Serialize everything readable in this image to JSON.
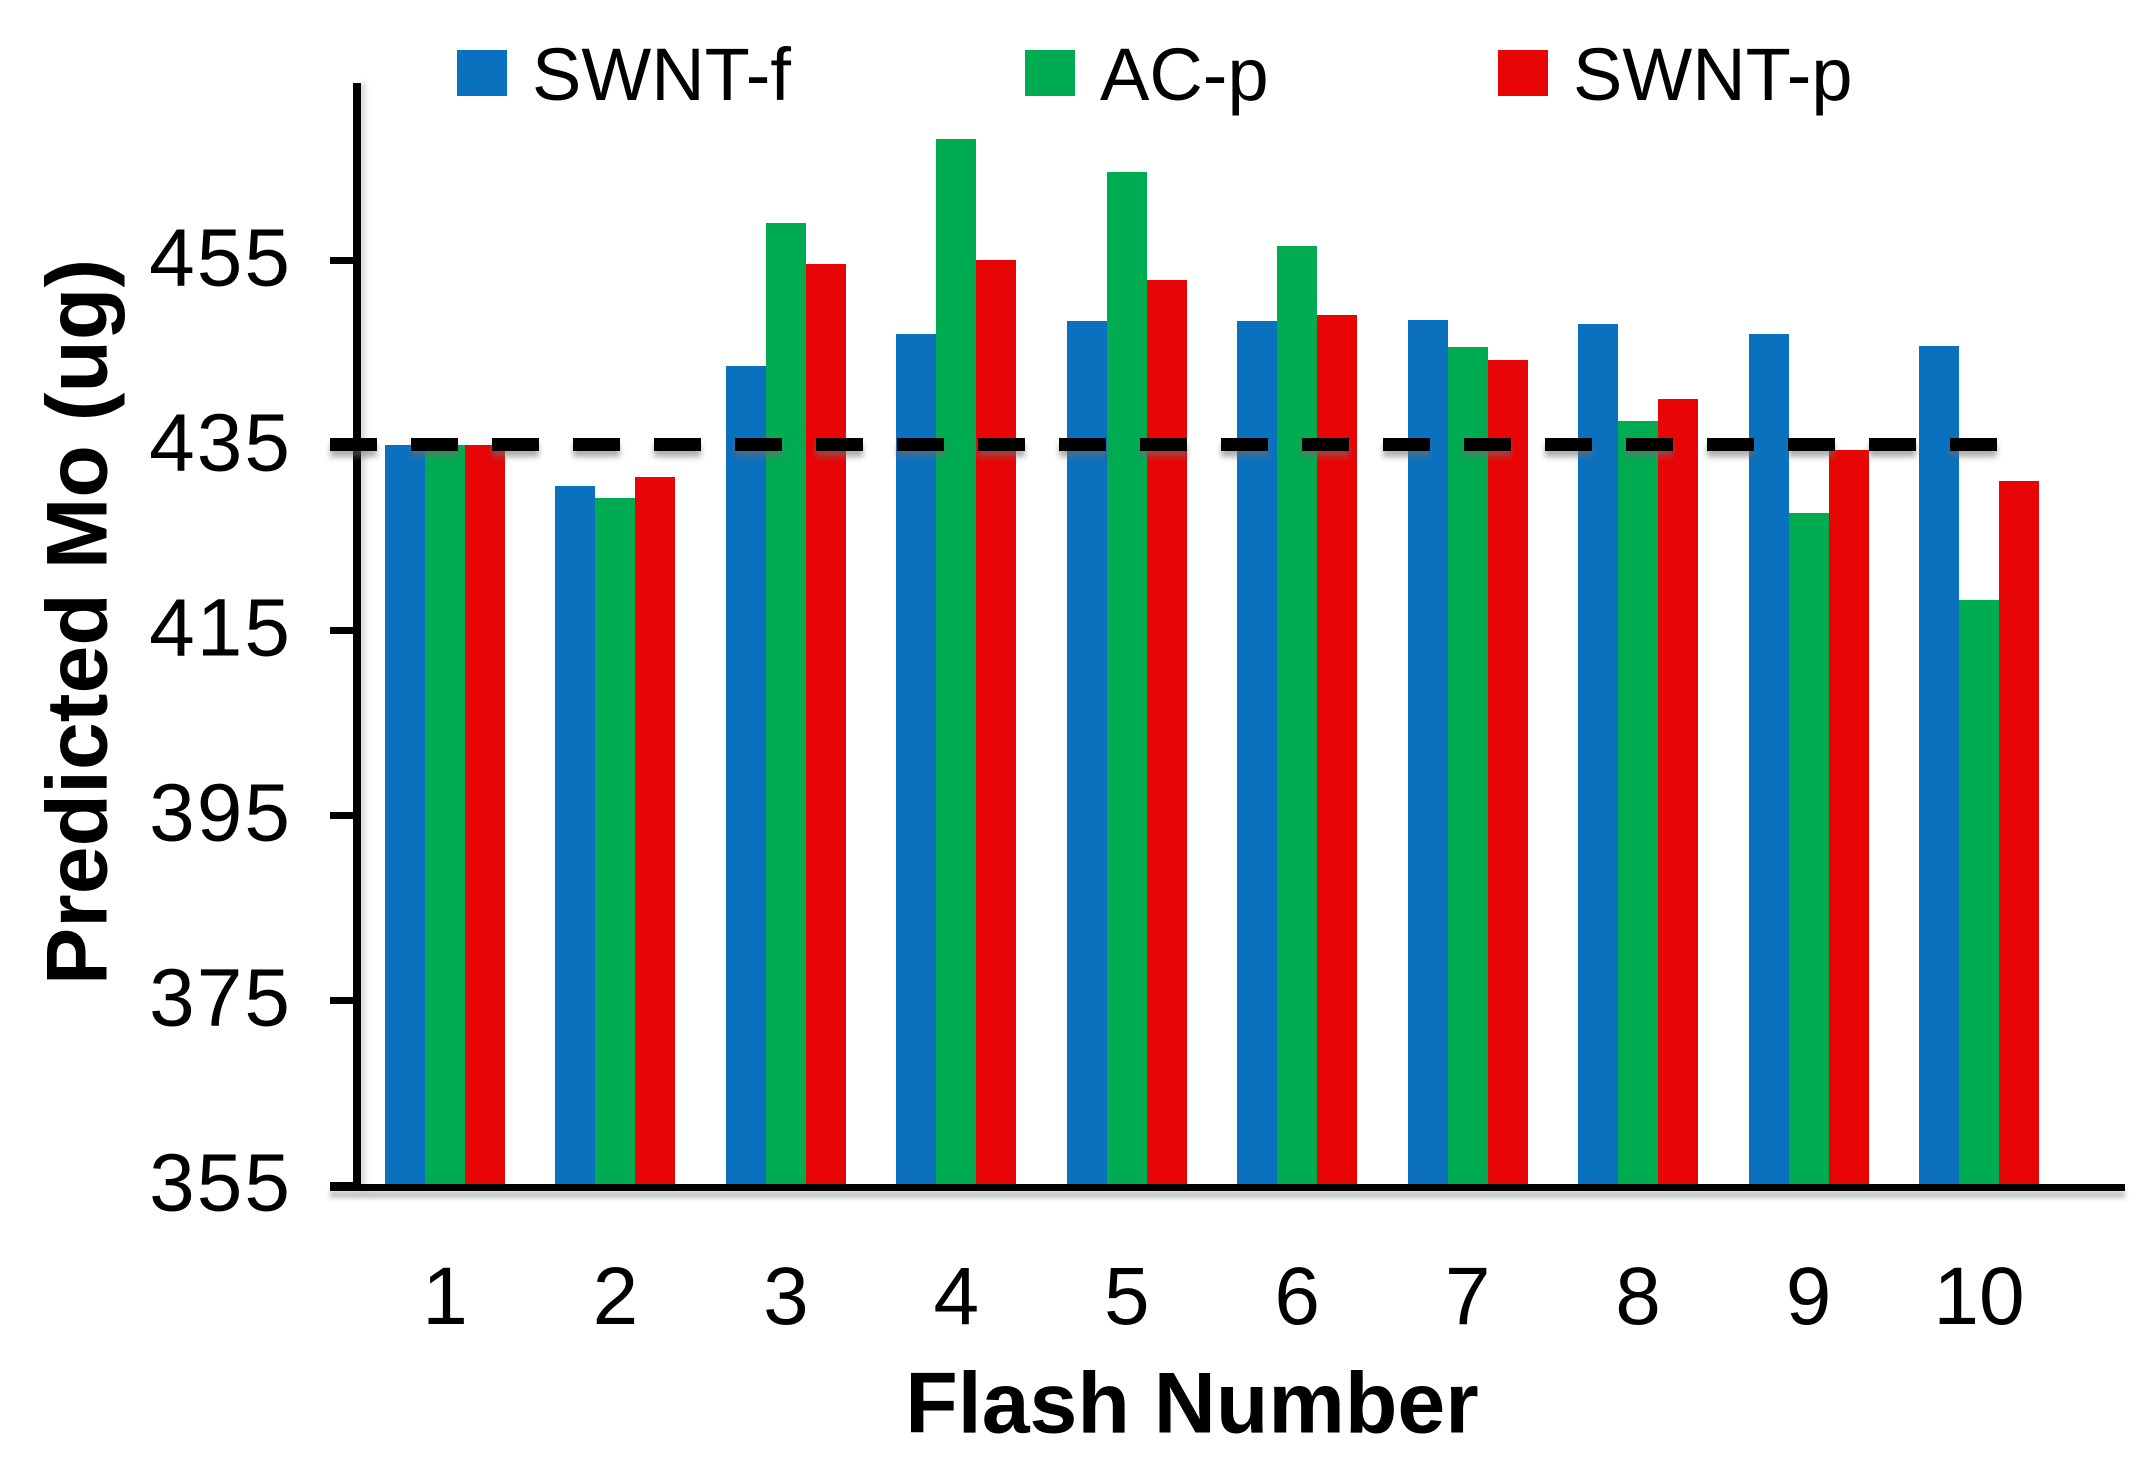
{
  "chart_data": {
    "type": "bar",
    "title": "",
    "xlabel": "Flash Number",
    "ylabel": "Predicted Mo (ug)",
    "categories": [
      "1",
      "2",
      "3",
      "4",
      "5",
      "6",
      "7",
      "8",
      "9",
      "10"
    ],
    "series": [
      {
        "name": "SWNT-f",
        "color": "#0A71BF",
        "values": [
          435.0,
          430.5,
          443.5,
          447.0,
          448.4,
          448.4,
          448.5,
          448.0,
          447.0,
          445.7
        ]
      },
      {
        "name": "AC-p",
        "color": "#00AC52",
        "values": [
          435.0,
          429.2,
          459.0,
          468.0,
          464.5,
          456.5,
          445.6,
          437.6,
          427.6,
          418.2
        ]
      },
      {
        "name": "SWNT-p",
        "color": "#E80505",
        "values": [
          435.0,
          431.5,
          454.5,
          455.0,
          452.8,
          449.0,
          444.2,
          440.0,
          434.4,
          431.1
        ]
      }
    ],
    "yticks": [
      "455",
      "435",
      "415",
      "395",
      "375",
      "355"
    ],
    "ytick_values": [
      455,
      435,
      415,
      395,
      375,
      355
    ],
    "ylim": [
      355,
      474.1
    ],
    "reference_line": {
      "value": 435,
      "color": "#000000",
      "style": "dashed"
    },
    "legend": {
      "position": "top",
      "entries": [
        "SWNT-f",
        "AC-p",
        "SWNT-p"
      ]
    },
    "grid": false,
    "axis_color": "#000000",
    "text_color": "#000000",
    "background": "#ffffff"
  }
}
